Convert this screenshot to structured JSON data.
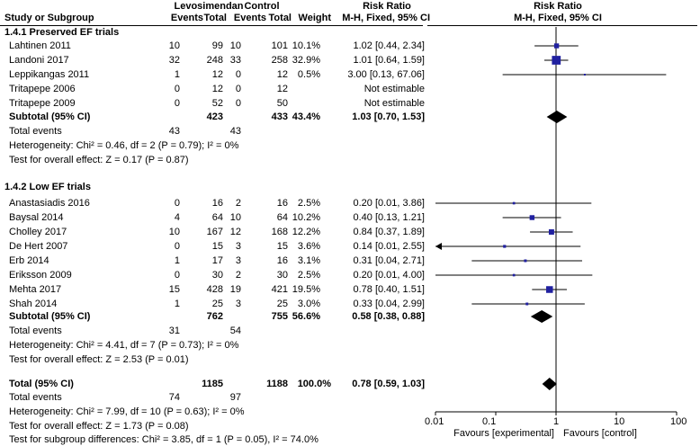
{
  "header": {
    "group1": "Levosimendan",
    "group2": "Control",
    "rr_header": "Risk Ratio",
    "rr_sub": "M-H, Fixed, 95% CI",
    "plot_header": "Risk Ratio",
    "plot_sub": "M-H, Fixed, 95% CI",
    "col_study": "Study or Subgroup",
    "col_events1": "Events",
    "col_total1": "Total",
    "col_events2": "Events",
    "col_total2": "Total",
    "col_weight": "Weight"
  },
  "subgroups": [
    {
      "title": "1.4.1 Preserved EF trials",
      "studies": [
        {
          "name": "Lahtinen 2011",
          "e1": "10",
          "t1": "99",
          "e2": "10",
          "t2": "101",
          "w": "10.1%",
          "ci": "1.02 [0.44, 2.34]"
        },
        {
          "name": "Landoni 2017",
          "e1": "32",
          "t1": "248",
          "e2": "33",
          "t2": "258",
          "w": "32.9%",
          "ci": "1.01 [0.64, 1.59]"
        },
        {
          "name": "Leppikangas 2011",
          "e1": "1",
          "t1": "12",
          "e2": "0",
          "t2": "12",
          "w": "0.5%",
          "ci": "3.00 [0.13, 67.06]"
        },
        {
          "name": "Tritapepe 2006",
          "e1": "0",
          "t1": "12",
          "e2": "0",
          "t2": "12",
          "w": "",
          "ci": "Not estimable"
        },
        {
          "name": "Tritapepe 2009",
          "e1": "0",
          "t1": "52",
          "e2": "0",
          "t2": "50",
          "w": "",
          "ci": "Not estimable"
        }
      ],
      "subtotal": {
        "label": "Subtotal (95% CI)",
        "t1": "423",
        "t2": "433",
        "w": "43.4%",
        "ci": "1.03 [0.70, 1.53]"
      },
      "total_events": {
        "label": "Total events",
        "e1": "43",
        "e2": "43"
      },
      "heterogeneity": "Heterogeneity: Chi² = 0.46, df = 2 (P = 0.79); I² = 0%",
      "overall": "Test for overall effect: Z = 0.17 (P = 0.87)"
    },
    {
      "title": "1.4.2 Low EF trials",
      "studies": [
        {
          "name": "Anastasiadis 2016",
          "e1": "0",
          "t1": "16",
          "e2": "2",
          "t2": "16",
          "w": "2.5%",
          "ci": "0.20 [0.01, 3.86]"
        },
        {
          "name": "Baysal 2014",
          "e1": "4",
          "t1": "64",
          "e2": "10",
          "t2": "64",
          "w": "10.2%",
          "ci": "0.40 [0.13, 1.21]"
        },
        {
          "name": "Cholley 2017",
          "e1": "10",
          "t1": "167",
          "e2": "12",
          "t2": "168",
          "w": "12.2%",
          "ci": "0.84 [0.37, 1.89]"
        },
        {
          "name": "De Hert 2007",
          "e1": "0",
          "t1": "15",
          "e2": "3",
          "t2": "15",
          "w": "3.6%",
          "ci": "0.14 [0.01, 2.55]"
        },
        {
          "name": "Erb 2014",
          "e1": "1",
          "t1": "17",
          "e2": "3",
          "t2": "16",
          "w": "3.1%",
          "ci": "0.31 [0.04, 2.71]"
        },
        {
          "name": "Eriksson 2009",
          "e1": "0",
          "t1": "30",
          "e2": "2",
          "t2": "30",
          "w": "2.5%",
          "ci": "0.20 [0.01, 4.00]"
        },
        {
          "name": "Mehta 2017",
          "e1": "15",
          "t1": "428",
          "e2": "19",
          "t2": "421",
          "w": "19.5%",
          "ci": "0.78 [0.40, 1.51]"
        },
        {
          "name": "Shah 2014",
          "e1": "1",
          "t1": "25",
          "e2": "3",
          "t2": "25",
          "w": "3.0%",
          "ci": "0.33 [0.04, 2.99]"
        }
      ],
      "subtotal": {
        "label": "Subtotal (95% CI)",
        "t1": "762",
        "t2": "755",
        "w": "56.6%",
        "ci": "0.58 [0.38, 0.88]"
      },
      "total_events": {
        "label": "Total events",
        "e1": "31",
        "e2": "54"
      },
      "heterogeneity": "Heterogeneity: Chi² = 4.41, df = 7 (P = 0.73); I² = 0%",
      "overall": "Test for overall effect: Z = 2.53 (P = 0.01)"
    }
  ],
  "total": {
    "label": "Total (95% CI)",
    "t1": "1185",
    "t2": "1188",
    "w": "100.0%",
    "ci": "0.78 [0.59, 1.03]"
  },
  "total_events": {
    "label": "Total events",
    "e1": "74",
    "e2": "97"
  },
  "total_heterogeneity": "Heterogeneity: Chi² = 7.99, df = 10 (P = 0.63); I² = 0%",
  "total_overall": "Test for overall effect: Z = 1.73 (P = 0.08)",
  "subgroup_diff": "Test for subgroup differences: Chi² = 3.85, df = 1 (P = 0.05), I² = 74.0%",
  "axis": {
    "ticks": [
      "0.01",
      "0.1",
      "1",
      "10",
      "100"
    ],
    "left_label": "Favours [experimental]",
    "right_label": "Favours [control]"
  },
  "colors": {
    "marker": "#2020a0",
    "line": "#000000",
    "diamond": "#000000"
  },
  "chart_data": {
    "type": "forest",
    "scale": "log",
    "xlim": [
      0.01,
      100
    ],
    "reference_line": 1,
    "studies": [
      {
        "name": "Lahtinen 2011",
        "rr": 1.02,
        "lo": 0.44,
        "hi": 2.34,
        "weight": 10.1
      },
      {
        "name": "Landoni 2017",
        "rr": 1.01,
        "lo": 0.64,
        "hi": 1.59,
        "weight": 32.9
      },
      {
        "name": "Leppikangas 2011",
        "rr": 3.0,
        "lo": 0.13,
        "hi": 67.06,
        "weight": 0.5
      },
      {
        "name": "Anastasiadis 2016",
        "rr": 0.2,
        "lo": 0.01,
        "hi": 3.86,
        "weight": 2.5
      },
      {
        "name": "Baysal 2014",
        "rr": 0.4,
        "lo": 0.13,
        "hi": 1.21,
        "weight": 10.2
      },
      {
        "name": "Cholley 2017",
        "rr": 0.84,
        "lo": 0.37,
        "hi": 1.89,
        "weight": 12.2
      },
      {
        "name": "De Hert 2007",
        "rr": 0.14,
        "lo": 0.01,
        "hi": 2.55,
        "weight": 3.6,
        "arrow_left": true
      },
      {
        "name": "Erb 2014",
        "rr": 0.31,
        "lo": 0.04,
        "hi": 2.71,
        "weight": 3.1
      },
      {
        "name": "Eriksson 2009",
        "rr": 0.2,
        "lo": 0.01,
        "hi": 4.0,
        "weight": 2.5
      },
      {
        "name": "Mehta 2017",
        "rr": 0.78,
        "lo": 0.4,
        "hi": 1.51,
        "weight": 19.5
      },
      {
        "name": "Shah 2014",
        "rr": 0.33,
        "lo": 0.04,
        "hi": 2.99,
        "weight": 3.0
      }
    ],
    "summaries": [
      {
        "name": "Subtotal Preserved EF",
        "rr": 1.03,
        "lo": 0.7,
        "hi": 1.53
      },
      {
        "name": "Subtotal Low EF",
        "rr": 0.58,
        "lo": 0.38,
        "hi": 0.88
      },
      {
        "name": "Total",
        "rr": 0.78,
        "lo": 0.59,
        "hi": 1.03
      }
    ]
  }
}
